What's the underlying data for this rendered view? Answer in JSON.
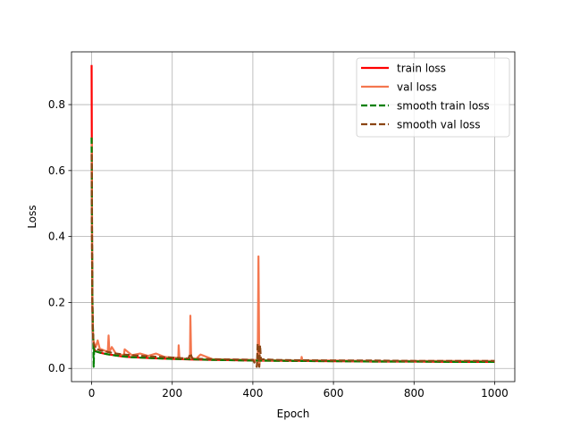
{
  "chart_data": {
    "type": "line",
    "title": "",
    "xlabel": "Epoch",
    "ylabel": "Loss",
    "xlim": [
      -50,
      1050
    ],
    "ylim": [
      -0.04,
      0.96
    ],
    "xticks": [
      0,
      200,
      400,
      600,
      800,
      1000
    ],
    "yticks": [
      0.0,
      0.2,
      0.4,
      0.6,
      0.8
    ],
    "xtick_labels": [
      "0",
      "200",
      "400",
      "600",
      "800",
      "1000"
    ],
    "ytick_labels": [
      "0.0",
      "0.2",
      "0.4",
      "0.6",
      "0.8"
    ],
    "grid": true,
    "legend_position": "top-right",
    "series": [
      {
        "name": "train loss",
        "color": "#ff0000",
        "style": "solid",
        "x": [
          0,
          1,
          2,
          3,
          4,
          5,
          6,
          8,
          10,
          15,
          20,
          30,
          40,
          50,
          60,
          80,
          100,
          150,
          200,
          250,
          300,
          400,
          500,
          600,
          700,
          800,
          900,
          1000
        ],
        "y": [
          0.92,
          0.42,
          0.2,
          0.12,
          0.09,
          0.07,
          0.06,
          0.055,
          0.052,
          0.05,
          0.048,
          0.045,
          0.043,
          0.041,
          0.039,
          0.036,
          0.034,
          0.031,
          0.029,
          0.027,
          0.026,
          0.024,
          0.023,
          0.022,
          0.021,
          0.021,
          0.02,
          0.02
        ]
      },
      {
        "name": "val loss",
        "color": "#f4774f",
        "style": "solid",
        "x": [
          0,
          1,
          2,
          3,
          5,
          8,
          10,
          15,
          20,
          30,
          40,
          42,
          44,
          50,
          60,
          80,
          82,
          100,
          120,
          140,
          160,
          180,
          200,
          215,
          216,
          218,
          230,
          244,
          245,
          247,
          260,
          270,
          300,
          350,
          400,
          410,
          412,
          414,
          416,
          418,
          430,
          450,
          500,
          520,
          521,
          523,
          600,
          700,
          800,
          900,
          1000
        ],
        "y": [
          0.7,
          0.35,
          0.18,
          0.11,
          0.08,
          0.07,
          0.065,
          0.085,
          0.06,
          0.055,
          0.05,
          0.1,
          0.05,
          0.065,
          0.045,
          0.04,
          0.058,
          0.04,
          0.045,
          0.038,
          0.045,
          0.035,
          0.033,
          0.032,
          0.07,
          0.03,
          0.03,
          0.03,
          0.16,
          0.03,
          0.03,
          0.042,
          0.028,
          0.027,
          0.026,
          0.025,
          0.01,
          0.34,
          0.01,
          0.028,
          0.025,
          0.025,
          0.024,
          0.024,
          0.035,
          0.024,
          0.024,
          0.023,
          0.023,
          0.023,
          0.023
        ]
      },
      {
        "name": "smooth train loss",
        "color": "#008000",
        "style": "dashed",
        "x": [
          0,
          1,
          2,
          3,
          4,
          5,
          6,
          8,
          10,
          20,
          40,
          60,
          100,
          200,
          300,
          400,
          500,
          600,
          700,
          800,
          900,
          1000
        ],
        "y": [
          0.7,
          0.4,
          0.22,
          0.13,
          0.1,
          0.005,
          0.06,
          0.055,
          0.052,
          0.048,
          0.043,
          0.039,
          0.034,
          0.029,
          0.026,
          0.024,
          0.023,
          0.022,
          0.021,
          0.021,
          0.02,
          0.02
        ]
      },
      {
        "name": "smooth val loss",
        "color": "#8b4513",
        "style": "dashed",
        "x": [
          0,
          1,
          2,
          3,
          5,
          8,
          10,
          20,
          40,
          60,
          80,
          100,
          150,
          200,
          240,
          245,
          250,
          300,
          400,
          410,
          412,
          414,
          416,
          418,
          420,
          450,
          500,
          600,
          700,
          800,
          900,
          1000
        ],
        "y": [
          0.65,
          0.33,
          0.18,
          0.11,
          0.075,
          0.065,
          0.06,
          0.055,
          0.05,
          0.045,
          0.042,
          0.04,
          0.036,
          0.033,
          0.03,
          0.045,
          0.03,
          0.028,
          0.026,
          0.005,
          0.075,
          0.06,
          0.005,
          0.07,
          0.028,
          0.026,
          0.025,
          0.024,
          0.024,
          0.023,
          0.023,
          0.023
        ]
      }
    ]
  }
}
